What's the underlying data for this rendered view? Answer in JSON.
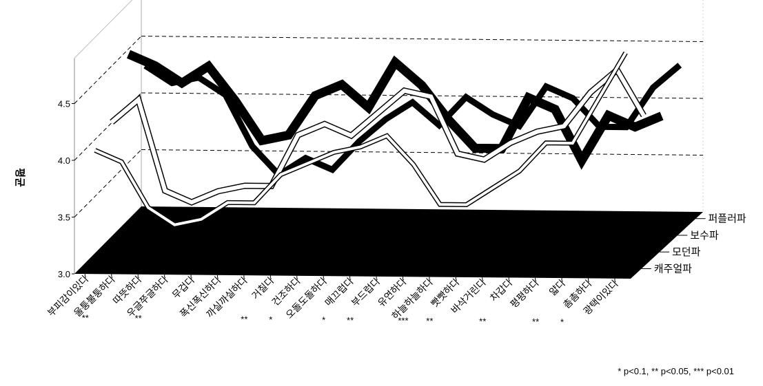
{
  "chart_data": {
    "type": "line",
    "title": "",
    "ylabel": "평균",
    "xlabel": "",
    "ylim": [
      3.0,
      4.9
    ],
    "yticks": [
      "3.0",
      "3.5",
      "4.0",
      "4.5"
    ],
    "grid": true,
    "projection": "3d-depth",
    "categories": [
      "부피감이있다",
      "울퉁불퉁하다",
      "따뜻하다",
      "우글쭈글하다",
      "무겁다",
      "폭신폭신하다",
      "까실까실하다",
      "거칠다",
      "건조하다",
      "오돌도돌하다",
      "매끄럽다",
      "부드럽다",
      "유연하다",
      "하늘하늘하다",
      "빳빳하다",
      "바삭거린다",
      "차갑다",
      "평평하다",
      "얇다",
      "촘촘하다",
      "광택이있다"
    ],
    "significance": [
      "",
      "**",
      "",
      "**",
      "",
      "",
      "",
      "**",
      "*",
      "",
      "*",
      "**",
      "",
      "***",
      "**",
      "",
      "**",
      "",
      "**",
      "*",
      ""
    ],
    "note": "* p<0.1, ** p<0.05, *** p<0.01",
    "series": [
      {
        "name": "퍼플러파",
        "values": [
          4.3,
          4.15,
          4.2,
          4.05,
          3.6,
          3.35,
          3.5,
          3.4,
          3.65,
          3.85,
          4.0,
          3.8,
          4.05,
          3.9,
          3.8,
          4.15,
          4.05,
          3.8,
          3.8,
          4.15,
          4.35
        ]
      },
      {
        "name": "보수파",
        "values": [
          4.55,
          4.45,
          4.3,
          4.45,
          4.15,
          3.8,
          3.85,
          4.2,
          4.3,
          4.1,
          4.5,
          4.3,
          4.0,
          3.75,
          3.75,
          4.2,
          4.1,
          3.65,
          4.05,
          3.95,
          4.05
        ]
      },
      {
        "name": "모던파",
        "values": [
          4.1,
          4.3,
          3.5,
          3.4,
          3.5,
          3.55,
          3.55,
          4.0,
          4.1,
          4.0,
          4.2,
          4.4,
          4.35,
          3.85,
          3.8,
          3.95,
          4.05,
          4.1,
          4.4,
          4.6,
          4.2
        ]
      },
      {
        "name": "캐주얼파",
        "values": [
          4.0,
          3.9,
          3.5,
          3.35,
          3.4,
          3.55,
          3.55,
          3.8,
          3.9,
          4.0,
          4.05,
          4.15,
          3.9,
          3.55,
          3.55,
          3.7,
          3.85,
          4.1,
          4.1,
          4.5,
          4.9
        ]
      }
    ]
  }
}
